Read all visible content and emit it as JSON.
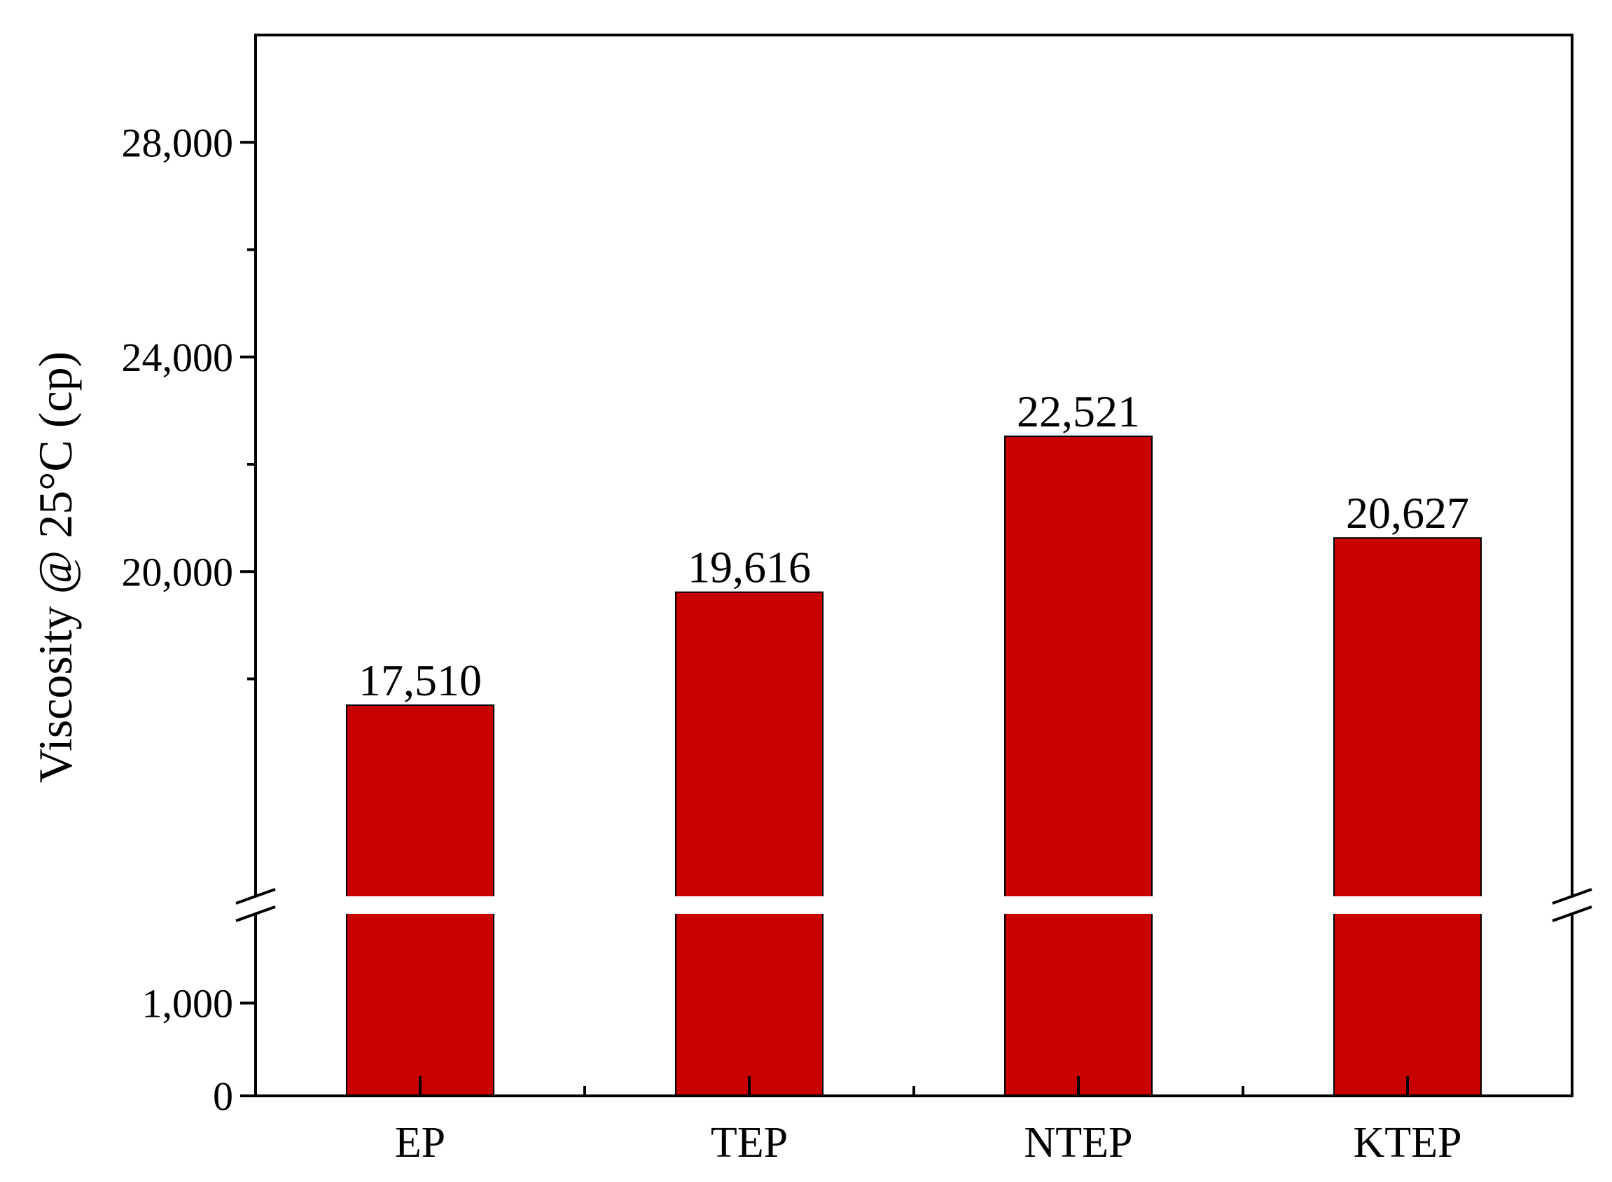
{
  "chart_data": {
    "type": "bar",
    "title": "",
    "xlabel": "",
    "ylabel": "Viscosity @ 25°C (cp)",
    "categories": [
      "EP",
      "TEP",
      "NTEP",
      "KTEP"
    ],
    "values": [
      17510,
      19616,
      22521,
      20627
    ],
    "value_labels": [
      "17,510",
      "19,616",
      "22,521",
      "20,627"
    ],
    "bar_color": "#c80000",
    "axis_break": {
      "lower_range": [
        0,
        2000
      ],
      "upper_range": [
        14000,
        30000
      ]
    },
    "y_ticks_lower": [
      {
        "value": 0,
        "label": "0"
      },
      {
        "value": 1000,
        "label": "1,000"
      }
    ],
    "y_ticks_upper": [
      {
        "value": 20000,
        "label": "20,000"
      },
      {
        "value": 24000,
        "label": "24,000"
      },
      {
        "value": 28000,
        "label": "28,000"
      }
    ],
    "y_minor_ticks_upper": [
      18000,
      22000,
      26000
    ],
    "grid": false,
    "legend": "none"
  }
}
